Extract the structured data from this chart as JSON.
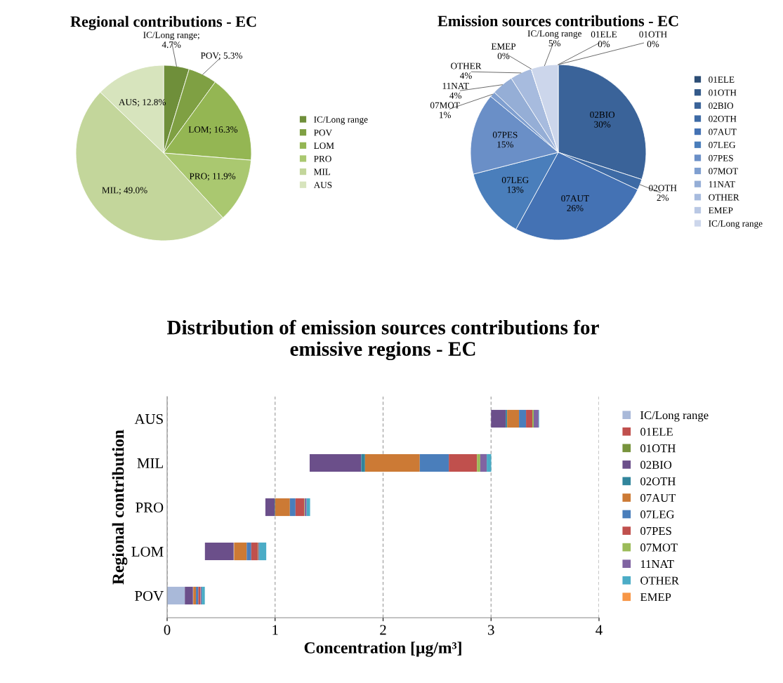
{
  "chart_data": [
    {
      "type": "pie",
      "title": "Regional contributions - EC",
      "legend": "right",
      "categories": [
        "IC/Long range",
        "POV",
        "LOM",
        "PRO",
        "MIL",
        "AUS"
      ],
      "values": [
        4.7,
        5.3,
        16.3,
        11.9,
        49.0,
        12.8
      ],
      "colors": [
        "#6f8f3a",
        "#7fa043",
        "#94b653",
        "#aac870",
        "#c3d69b",
        "#d7e4bd"
      ],
      "value_labels": [
        "IC/Long range;\n4.7%",
        "POV; 5.3%",
        "LOM; 16.3%",
        "PRO; 11.9%",
        "MIL; 49.0%",
        "AUS; 12.8%"
      ]
    },
    {
      "type": "pie",
      "title": "Emission sources contributions - EC",
      "legend": "right",
      "categories": [
        "01ELE",
        "01OTH",
        "02BIO",
        "02OTH",
        "07AUT",
        "07LEG",
        "07PES",
        "07MOT",
        "11NAT",
        "OTHER",
        "EMEP",
        "IC/Long range"
      ],
      "values": [
        0,
        0,
        30,
        2,
        26,
        13,
        15,
        1,
        4,
        4,
        0,
        5
      ],
      "colors": [
        "#2c4d75",
        "#345a8a",
        "#3a6399",
        "#3d6aa5",
        "#4472b4",
        "#4a7ebb",
        "#6a8fc7",
        "#7f9fd0",
        "#95aed6",
        "#a7bbde",
        "#b9c8e4",
        "#ccd6eb"
      ],
      "value_labels": [
        "01ELE\n0%",
        "01OTH\n0%",
        "02BIO\n30%",
        "02OTH\n2%",
        "07AUT\n26%",
        "07LEG\n13%",
        "07PES\n15%",
        "07MOT\n1%",
        "11NAT\n4%",
        "OTHER\n4%",
        "EMEP\n0%",
        "IC/Long range\n5%"
      ]
    },
    {
      "type": "bar",
      "orientation": "horizontal",
      "title": "Distribution of emission sources contributions for\nemissive regions - EC",
      "xlabel": "Concentration [µg/m³]",
      "ylabel": "Regional contribution",
      "categories": [
        "AUS",
        "MIL",
        "PRO",
        "LOM",
        "POV"
      ],
      "xlim": [
        0,
        4
      ],
      "xticks": [
        0,
        1,
        2,
        3,
        4
      ],
      "grid": "x",
      "legend": "right",
      "series": [
        {
          "name": "IC/Long range",
          "color": "#a9b9d9",
          "values": [
            null,
            null,
            null,
            null,
            0.164
          ],
          "base": [
            null,
            null,
            null,
            null,
            0
          ]
        },
        {
          "name": "01ELE",
          "color": "#c0504d",
          "values": [
            null,
            null,
            null,
            null,
            null
          ]
        },
        {
          "name": "01OTH",
          "color": "#77933c",
          "values": [
            null,
            null,
            null,
            null,
            null
          ]
        },
        {
          "name": "02BIO",
          "color": "#6b4f8a",
          "values": [
            0.136,
            0.478,
            0.085,
            0.266,
            0.075
          ],
          "base": [
            3.0,
            1.32,
            0.91,
            0.35,
            0.164
          ]
        },
        {
          "name": "02OTH",
          "color": "#31859c",
          "values": [
            0.013,
            0.035,
            0.005,
            null,
            null
          ],
          "base": [
            3.136,
            1.798,
            0.995,
            null,
            null
          ]
        },
        {
          "name": "07AUT",
          "color": "#cc7a35",
          "values": [
            0.11,
            0.507,
            0.137,
            0.117,
            0.025
          ],
          "base": [
            3.149,
            1.833,
            1.0,
            0.62,
            0.242
          ]
        },
        {
          "name": "07LEG",
          "color": "#4a7ebb",
          "values": [
            0.065,
            0.269,
            0.052,
            0.042,
            0.022
          ],
          "base": [
            3.259,
            2.34,
            1.137,
            0.737,
            0.267
          ]
        },
        {
          "name": "07PES",
          "color": "#c0504d",
          "values": [
            0.058,
            0.261,
            0.082,
            0.062,
            0.02
          ],
          "base": [
            3.324,
            2.609,
            1.189,
            0.779,
            0.289
          ]
        },
        {
          "name": "07MOT",
          "color": "#9bbb59",
          "values": [
            0.013,
            0.03,
            0.004,
            0.004,
            null
          ],
          "base": [
            3.382,
            2.87,
            1.271,
            0.841,
            null
          ]
        },
        {
          "name": "11NAT",
          "color": "#8064a2",
          "values": [
            0.045,
            0.06,
            0.017,
            0.008,
            0.008
          ],
          "base": [
            3.395,
            2.9,
            1.275,
            0.845,
            0.311
          ]
        },
        {
          "name": "OTHER",
          "color": "#4bacc6",
          "values": [
            0.005,
            0.042,
            0.032,
            0.065,
            0.03
          ],
          "base": [
            3.44,
            2.96,
            1.292,
            0.853,
            0.319
          ]
        },
        {
          "name": "EMEP",
          "color": "#f79646",
          "values": [
            null,
            null,
            null,
            null,
            null
          ]
        }
      ]
    }
  ]
}
